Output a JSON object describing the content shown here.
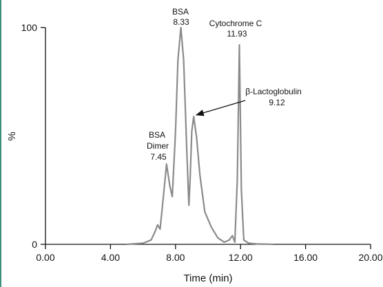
{
  "chart_data": {
    "type": "line",
    "xlabel": "Time (min)",
    "ylabel": "%",
    "xlim": [
      0,
      20
    ],
    "ylim": [
      0,
      100
    ],
    "x_ticks": [
      "0.00",
      "4.00",
      "8.00",
      "12.00",
      "16.00",
      "20.00"
    ],
    "y_ticks": [
      "0",
      "100"
    ],
    "line_color": "#8a8a8a",
    "grid": false,
    "series": [
      {
        "x": [
          5.0,
          5.5,
          6.0,
          6.5,
          6.75,
          6.9,
          7.05,
          7.2,
          7.45,
          7.65,
          7.8,
          8.0,
          8.15,
          8.33,
          8.5,
          8.7,
          8.82,
          8.9,
          9.0,
          9.12,
          9.3,
          9.5,
          9.8,
          10.2,
          10.6,
          11.0,
          11.3,
          11.5,
          11.65,
          11.8,
          11.93,
          12.05,
          12.2,
          12.5,
          13.0,
          14.0
        ],
        "y": [
          0,
          0.3,
          0.5,
          2,
          6,
          9,
          7,
          18,
          37,
          27,
          22,
          52,
          85,
          100,
          85,
          42,
          18,
          30,
          52,
          59,
          49,
          32,
          15,
          8,
          3,
          1,
          2,
          4,
          1,
          30,
          92,
          25,
          2,
          0.5,
          0.2,
          0
        ]
      }
    ],
    "annotations": [
      {
        "lines": [
          "BSA",
          "8.33"
        ]
      },
      {
        "lines": [
          "Cytochrome C",
          "11.93"
        ]
      },
      {
        "lines": [
          "β-Lactoglobulin",
          "9.12"
        ]
      },
      {
        "lines": [
          "BSA",
          "Dimer",
          "7.45"
        ]
      }
    ]
  }
}
